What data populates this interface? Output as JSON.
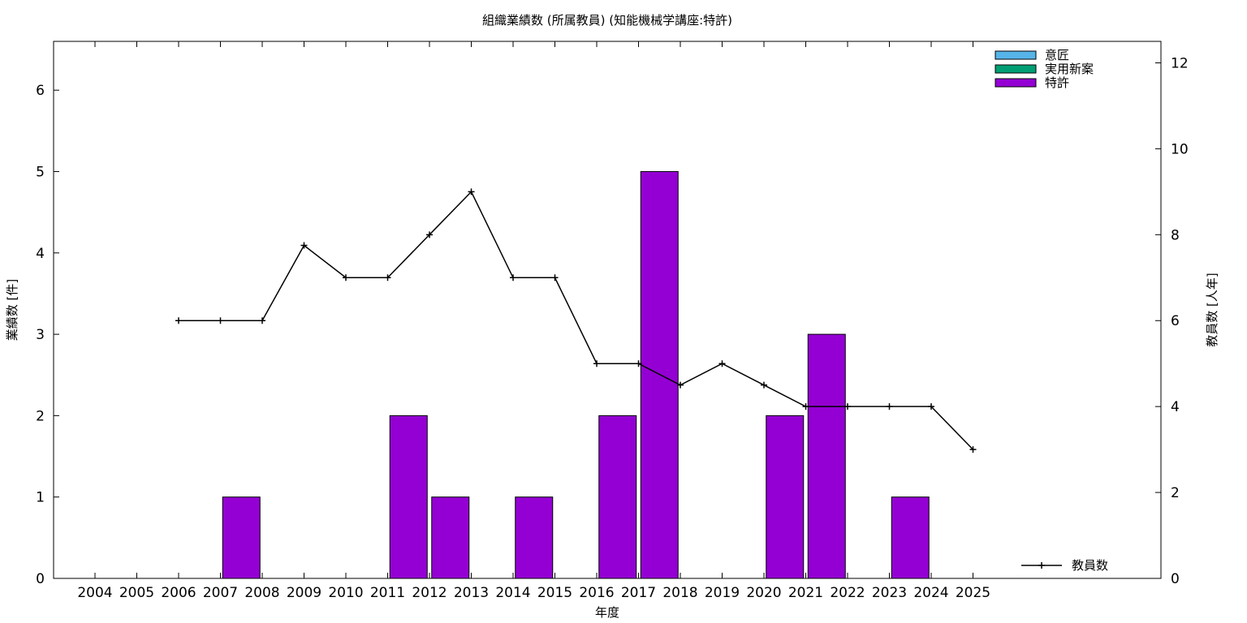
{
  "chart_data": {
    "type": "bar",
    "title": "組織業績数 (所属教員) (知能機械学講座:特許)",
    "xlabel": "年度",
    "ylabel": "業績数 [件]",
    "y2label": "教員数 [人年]",
    "categories": [
      "2004",
      "2005",
      "2006",
      "2007",
      "2008",
      "2009",
      "2010",
      "2011",
      "2012",
      "2013",
      "2014",
      "2015",
      "2016",
      "2017",
      "2018",
      "2019",
      "2020",
      "2021",
      "2022",
      "2023",
      "2024",
      "2025"
    ],
    "ylim": [
      0,
      6.6
    ],
    "y_ticks": [
      "0",
      "1",
      "2",
      "3",
      "4",
      "5",
      "6"
    ],
    "y2lim": [
      0,
      12.5
    ],
    "y2_ticks": [
      "0",
      "2",
      "4",
      "6",
      "8",
      "10",
      "12"
    ],
    "legend_position": "top-right",
    "bar_series": [
      {
        "name": "意匠",
        "color": "#56b4e9",
        "values": [
          0,
          0,
          0,
          0,
          0,
          0,
          0,
          0,
          0,
          0,
          0,
          0,
          0,
          0,
          0,
          0,
          0,
          0,
          0,
          0,
          0,
          0
        ]
      },
      {
        "name": "実用新案",
        "color": "#009e73",
        "values": [
          0,
          0,
          0,
          0,
          0,
          0,
          0,
          0,
          0,
          0,
          0,
          0,
          0,
          0,
          0,
          0,
          0,
          0,
          0,
          0,
          0,
          0
        ]
      },
      {
        "name": "特許",
        "color": "#9400d3",
        "values": [
          0,
          0,
          0,
          1,
          0,
          0,
          0,
          2,
          1,
          0,
          1,
          0,
          2,
          5,
          0,
          0,
          2,
          3,
          0,
          1,
          0,
          0
        ]
      }
    ],
    "line_series": {
      "name": "教員数",
      "color": "#000000",
      "axis": "right",
      "x": [
        "2006",
        "2007",
        "2008",
        "2009",
        "2010",
        "2011",
        "2012",
        "2013",
        "2014",
        "2015",
        "2016",
        "2017",
        "2018",
        "2019",
        "2020",
        "2021",
        "2022",
        "2023",
        "2024",
        "2025"
      ],
      "values": [
        6,
        6,
        6,
        7.75,
        7,
        7,
        8,
        9,
        7,
        7,
        5,
        5,
        4.5,
        5,
        4.5,
        4,
        4,
        4,
        4,
        3
      ]
    },
    "grid": false
  }
}
